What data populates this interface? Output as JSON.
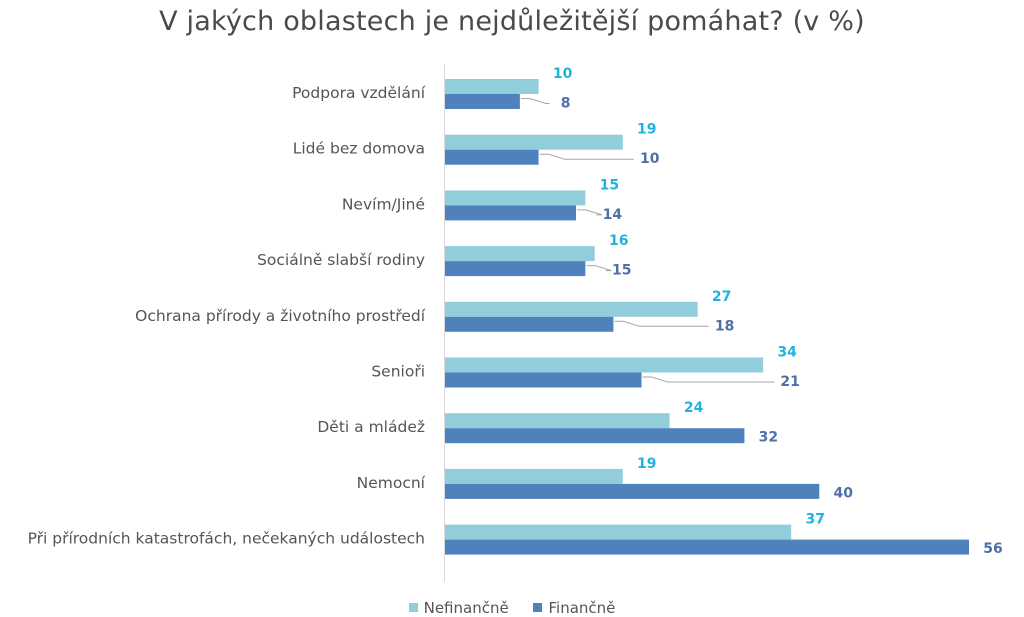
{
  "chart_data": {
    "type": "bar",
    "orientation": "horizontal",
    "title": "V jakých oblastech je nejdůležitější pomáhat? (v %)",
    "categories": [
      "Podpora vzdělání",
      "Lidé bez domova",
      "Nevím/Jiné",
      "Sociálně slabší rodiny",
      "Ochrana přírody a životního prostředí",
      "Senioři",
      "Děti a mládež",
      "Nemocní",
      "Při přírodních katastrofách, nečekaných událostech"
    ],
    "series": [
      {
        "name": "Nefinančně",
        "values": [
          10,
          19,
          15,
          16,
          27,
          34,
          24,
          19,
          37
        ],
        "color": "#92cddc",
        "label_color": "#1fb3e0"
      },
      {
        "name": "Finančně",
        "values": [
          8,
          10,
          14,
          15,
          18,
          21,
          32,
          40,
          56
        ],
        "color": "#4f81bd",
        "label_color": "#4f6fa8"
      }
    ],
    "xlim": [
      0,
      56
    ],
    "grid": false,
    "legend": "bottom",
    "data_labels": true
  }
}
